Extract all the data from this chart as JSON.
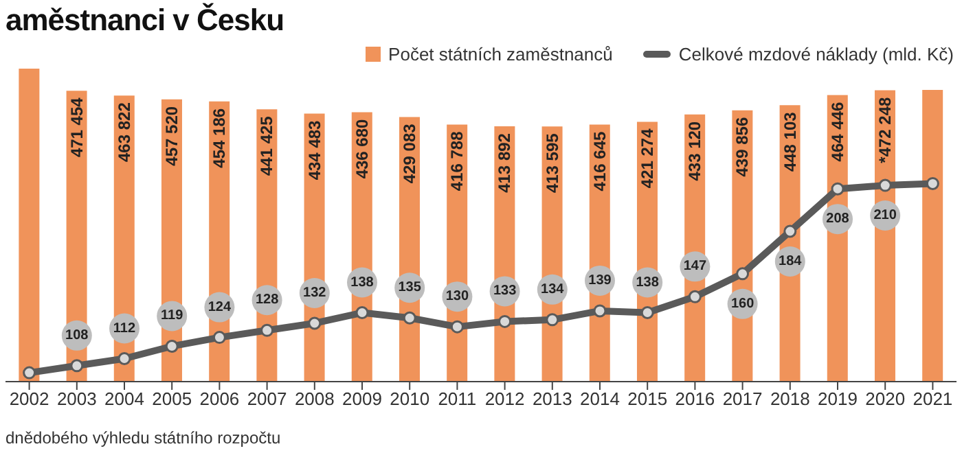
{
  "chart_data": {
    "type": "bar",
    "title": "aměstnanci v Česku",
    "categories": [
      "2002",
      "2003",
      "2004",
      "2005",
      "2006",
      "2007",
      "2008",
      "2009",
      "2010",
      "2011",
      "2012",
      "2013",
      "2014",
      "2015",
      "2016",
      "2017",
      "2018",
      "2019",
      "2020",
      "2021"
    ],
    "series": [
      {
        "name": "Počet státních zaměstnanců",
        "color": "#f0935a",
        "values": [
          507412,
          471454,
          463822,
          457520,
          454186,
          441425,
          434483,
          436680,
          429083,
          416788,
          413892,
          413595,
          416645,
          421274,
          433120,
          439856,
          448103,
          464446,
          472248,
          473000
        ],
        "value_labels": [
          null,
          "471 454",
          "463 822",
          "457 520",
          "454 186",
          "441 425",
          "434 483",
          "436 680",
          "429 083",
          "416 788",
          "413 892",
          "413 595",
          "416 645",
          "421 274",
          "433 120",
          "439 856",
          "448 103",
          "464 446",
          "*472 248",
          null
        ]
      },
      {
        "name": "Celkové mzdové náklady (mld. Kč)",
        "type": "line",
        "axis": "y2",
        "color": "#5a5a5a",
        "values": [
          104,
          108,
          112,
          119,
          124,
          128,
          132,
          138,
          135,
          130,
          133,
          134,
          139,
          138,
          147,
          160,
          184,
          208,
          210,
          211
        ],
        "value_labels": [
          null,
          "108",
          "112",
          "119",
          "124",
          "128",
          "132",
          "138",
          "135",
          "130",
          "133",
          "134",
          "139",
          "138",
          "147",
          "160",
          "184",
          "208",
          "210",
          null
        ]
      }
    ],
    "tick_labels": "x",
    "legend": "top right",
    "marker": "circle",
    "annotations": [
      "dnědobého výhledu státního rozpočtu"
    ]
  }
}
